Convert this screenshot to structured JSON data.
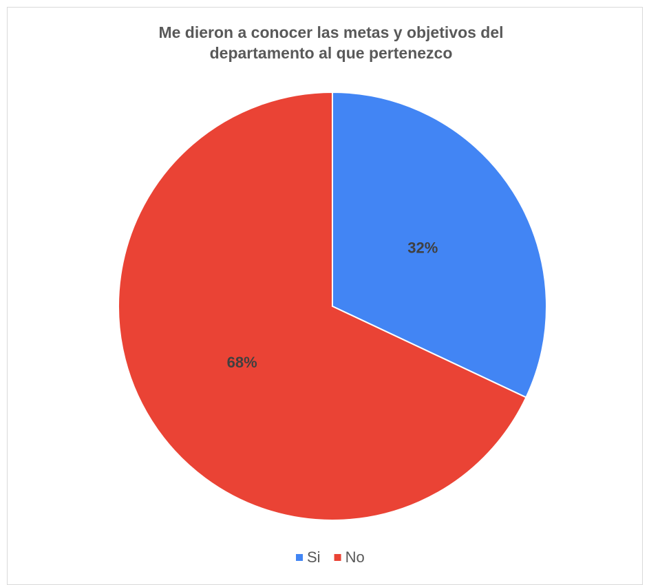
{
  "chart_data": {
    "type": "pie",
    "title": "Me dieron a conocer las metas y objetivos del departamento al que pertenezco",
    "categories": [
      "Si",
      "No"
    ],
    "values": [
      32,
      68
    ],
    "value_labels": [
      "32%",
      "68%"
    ],
    "colors": [
      "#4285f4",
      "#ea4335"
    ],
    "legend": "bottom"
  }
}
